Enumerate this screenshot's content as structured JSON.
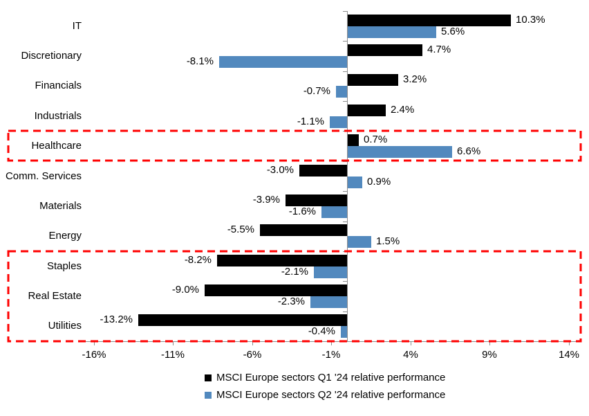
{
  "chart_data": {
    "type": "bar",
    "orientation": "horizontal",
    "title": "",
    "categories": [
      "IT",
      "Discretionary",
      "Financials",
      "Industrials",
      "Healthcare",
      "Comm. Services",
      "Materials",
      "Energy",
      "Staples",
      "Real Estate",
      "Utilities"
    ],
    "series": [
      {
        "name": "MSCI Europe sectors Q1 '24 relative performance",
        "color": "#000000",
        "values": [
          10.3,
          4.7,
          3.2,
          2.4,
          0.7,
          -3.0,
          -3.9,
          -5.5,
          -8.2,
          -9.0,
          -13.2
        ],
        "labels": [
          "10.3%",
          "4.7%",
          "3.2%",
          "2.4%",
          "0.7%",
          "-3.0%",
          "-3.9%",
          "-5.5%",
          "-8.2%",
          "-9.0%",
          "-13.2%"
        ]
      },
      {
        "name": "MSCI Europe sectors Q2 '24 relative performance",
        "color": "#5289BE",
        "values": [
          5.6,
          -8.1,
          -0.7,
          -1.1,
          6.6,
          0.9,
          -1.6,
          1.5,
          -2.1,
          -2.3,
          -0.4
        ],
        "labels": [
          "5.6%",
          "-8.1%",
          "-0.7%",
          "-1.1%",
          "6.6%",
          "0.9%",
          "-1.6%",
          "1.5%",
          "-2.1%",
          "-2.3%",
          "-0.4%"
        ]
      }
    ],
    "x_tick_labels": [
      "-16%",
      "-11%",
      "-6%",
      "-1%",
      "4%",
      "9%",
      "14%"
    ],
    "x_tick_values": [
      -16,
      -11,
      -6,
      -1,
      4,
      9,
      14
    ],
    "xlim": [
      -16.5,
      14.6
    ],
    "grid": false,
    "legend_position": "bottom",
    "axis_color": "#8C8C8C",
    "highlight": {
      "color": "#FF0000",
      "boxes": [
        {
          "from": "Healthcare",
          "to": "Healthcare"
        },
        {
          "from": "Staples",
          "to": "Utilities"
        }
      ]
    }
  }
}
